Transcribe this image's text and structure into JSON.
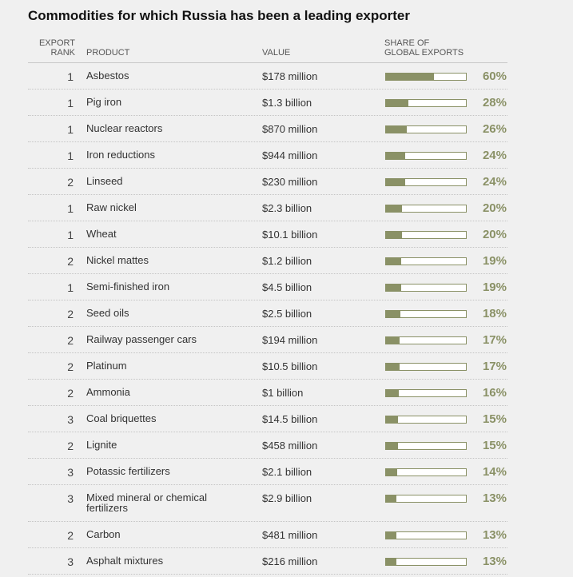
{
  "title": "Commodities for which Russia has been a leading exporter",
  "headers": {
    "rank_line1": "EXPORT",
    "rank_line2": "RANK",
    "product": "PRODUCT",
    "value": "VALUE",
    "share_line1": "SHARE OF",
    "share_line2": "GLOBAL EXPORTS"
  },
  "colors": {
    "bar": "#8a9166",
    "background": "#f0f0f0"
  },
  "chart_data": {
    "type": "table",
    "columns": [
      "Export rank",
      "Product",
      "Value",
      "Share of global exports"
    ],
    "rows": [
      {
        "rank": "1",
        "product": "Asbestos",
        "value": "$178 million",
        "share": 60,
        "share_label": "60%"
      },
      {
        "rank": "1",
        "product": "Pig iron",
        "value": "$1.3 billion",
        "share": 28,
        "share_label": "28%"
      },
      {
        "rank": "1",
        "product": "Nuclear reactors",
        "value": "$870 million",
        "share": 26,
        "share_label": "26%"
      },
      {
        "rank": "1",
        "product": "Iron reductions",
        "value": "$944 million",
        "share": 24,
        "share_label": "24%"
      },
      {
        "rank": "2",
        "product": "Linseed",
        "value": "$230 million",
        "share": 24,
        "share_label": "24%"
      },
      {
        "rank": "1",
        "product": "Raw nickel",
        "value": "$2.3 billion",
        "share": 20,
        "share_label": "20%"
      },
      {
        "rank": "1",
        "product": "Wheat",
        "value": "$10.1 billion",
        "share": 20,
        "share_label": "20%"
      },
      {
        "rank": "2",
        "product": "Nickel mattes",
        "value": "$1.2 billion",
        "share": 19,
        "share_label": "19%"
      },
      {
        "rank": "1",
        "product": "Semi-finished iron",
        "value": "$4.5 billion",
        "share": 19,
        "share_label": "19%"
      },
      {
        "rank": "2",
        "product": "Seed oils",
        "value": "$2.5 billion",
        "share": 18,
        "share_label": "18%"
      },
      {
        "rank": "2",
        "product": "Railway passenger cars",
        "value": "$194 million",
        "share": 17,
        "share_label": "17%"
      },
      {
        "rank": "2",
        "product": "Platinum",
        "value": "$10.5 billion",
        "share": 17,
        "share_label": "17%"
      },
      {
        "rank": "2",
        "product": "Ammonia",
        "value": "$1 billion",
        "share": 16,
        "share_label": "16%"
      },
      {
        "rank": "3",
        "product": "Coal briquettes",
        "value": "$14.5 billion",
        "share": 15,
        "share_label": "15%"
      },
      {
        "rank": "2",
        "product": "Lignite",
        "value": "$458 million",
        "share": 15,
        "share_label": "15%"
      },
      {
        "rank": "3",
        "product": "Potassic fertilizers",
        "value": "$2.1 billion",
        "share": 14,
        "share_label": "14%"
      },
      {
        "rank": "3",
        "product": "Mixed mineral or chemical fertilizers",
        "value": "$2.9 billion",
        "share": 13,
        "share_label": "13%"
      },
      {
        "rank": "2",
        "product": "Carbon",
        "value": "$481 million",
        "share": 13,
        "share_label": "13%"
      },
      {
        "rank": "3",
        "product": "Asphalt mixtures",
        "value": "$216 million",
        "share": 13,
        "share_label": "13%"
      }
    ]
  }
}
